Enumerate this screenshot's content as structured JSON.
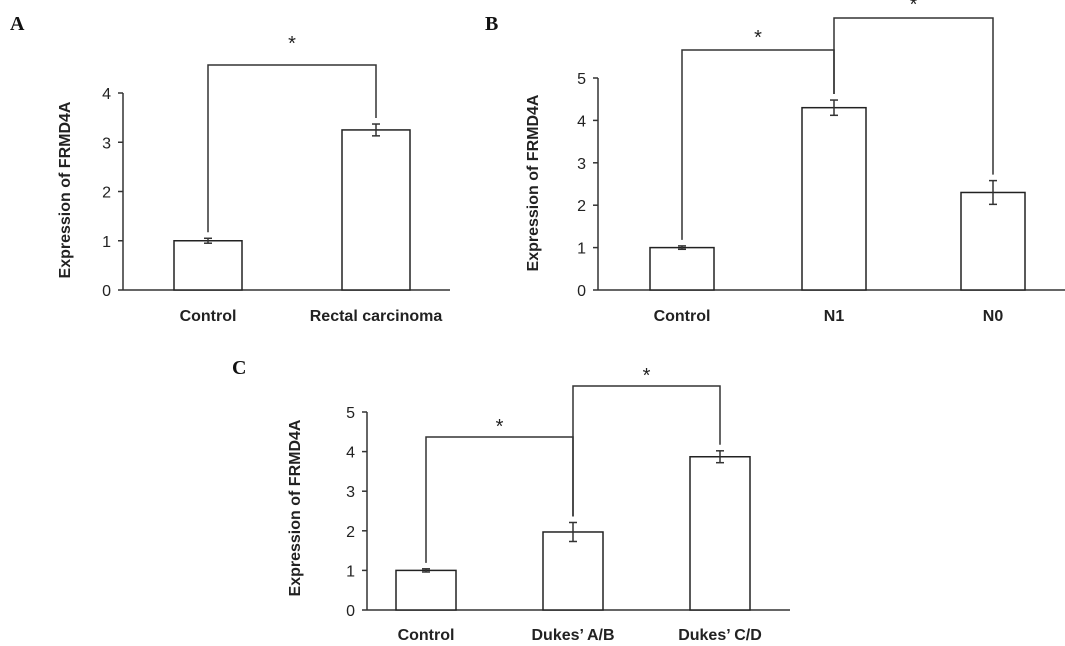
{
  "chart_data": [
    {
      "panel": "A",
      "type": "bar",
      "categories": [
        "Control",
        "Rectal carcinoma"
      ],
      "values": [
        1.0,
        3.25
      ],
      "errors": [
        0.05,
        0.12
      ],
      "ylabel": "Expression of FRMD4A",
      "ylim": [
        0,
        4
      ],
      "yticks": [
        "0",
        "1",
        "2",
        "3",
        "4"
      ],
      "significance": [
        {
          "from": 0,
          "to": 1,
          "label": "*"
        }
      ]
    },
    {
      "panel": "B",
      "type": "bar",
      "categories": [
        "Control",
        "N1",
        "N0"
      ],
      "values": [
        1.0,
        4.3,
        2.3
      ],
      "errors": [
        0.04,
        0.18,
        0.28
      ],
      "ylabel": "Expression of FRMD4A",
      "ylim": [
        0,
        5
      ],
      "yticks": [
        "0",
        "1",
        "2",
        "3",
        "4",
        "5"
      ],
      "significance": [
        {
          "from": 0,
          "to": 1,
          "label": "*"
        },
        {
          "from": 1,
          "to": 2,
          "label": "*"
        }
      ]
    },
    {
      "panel": "C",
      "type": "bar",
      "categories": [
        "Control",
        "Dukes’ A/B",
        "Dukes’ C/D"
      ],
      "values": [
        1.0,
        1.97,
        3.87
      ],
      "errors": [
        0.04,
        0.24,
        0.15
      ],
      "ylabel": "Expression of FRMD4A",
      "ylim": [
        0,
        5
      ],
      "yticks": [
        "0",
        "1",
        "2",
        "3",
        "4",
        "5"
      ],
      "significance": [
        {
          "from": 0,
          "to": 1,
          "label": "*"
        },
        {
          "from": 1,
          "to": 2,
          "label": "*"
        }
      ]
    }
  ]
}
